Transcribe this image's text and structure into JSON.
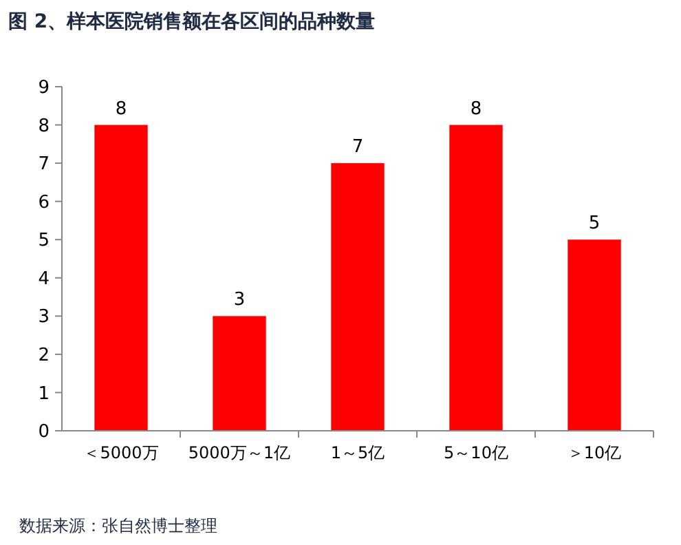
{
  "chart_data": {
    "type": "bar",
    "title": "图 2、样本医院销售额在各区间的品种数量",
    "categories": [
      "＜5000万",
      "5000万～1亿",
      "1～5亿",
      "5～10亿",
      "＞10亿"
    ],
    "values": [
      8,
      3,
      7,
      8,
      5
    ],
    "color": "#ff0000",
    "ylim": [
      0,
      9
    ],
    "yticks": [
      0,
      1,
      2,
      3,
      4,
      5,
      6,
      7,
      8,
      9
    ],
    "grid": false,
    "data_labels": true,
    "annotations": [
      "数据来源：张自然博士整理"
    ]
  }
}
